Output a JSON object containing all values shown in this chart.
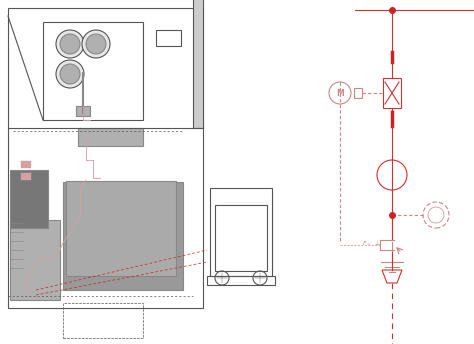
{
  "bg_color": "#ffffff",
  "line_color": "#555555",
  "red_color": "#cc2222",
  "pink_color": "#d4a0a0",
  "gray_dark": "#888888",
  "gray_med": "#aaaaaa",
  "gray_light": "#cccccc",
  "gray_fill": "#b0b0b0",
  "dark_gray": "#666666",
  "schematic_color": "#cc3333",
  "schematic_light": "#c88888"
}
